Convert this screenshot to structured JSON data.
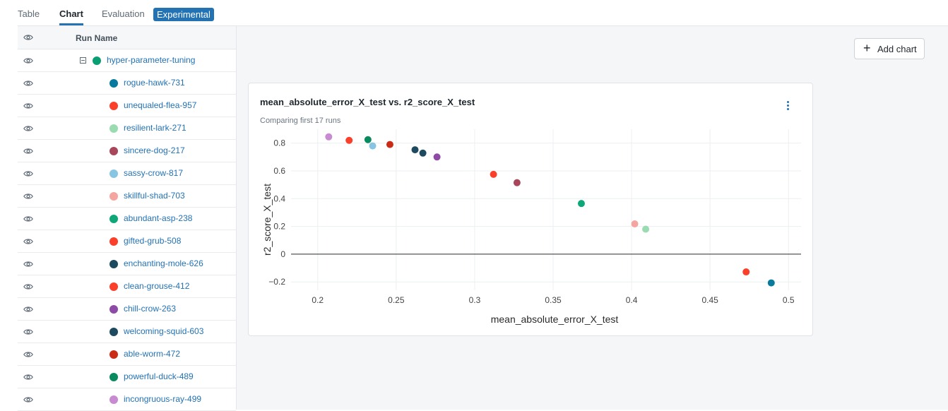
{
  "tabs": [
    {
      "label": "Table",
      "active": false
    },
    {
      "label": "Chart",
      "active": true
    },
    {
      "label": "Evaluation",
      "active": false
    }
  ],
  "badge": "Experimental",
  "sidebar": {
    "header": "Run Name",
    "group": {
      "name": "hyper-parameter-tuning",
      "color": "#0a9e73"
    },
    "runs": [
      {
        "name": "rogue-hawk-731",
        "color": "#077a9d"
      },
      {
        "name": "unequaled-flea-957",
        "color": "#fa3f2a"
      },
      {
        "name": "resilient-lark-271",
        "color": "#9bdbb2"
      },
      {
        "name": "sincere-dog-217",
        "color": "#a8475a"
      },
      {
        "name": "sassy-crow-817",
        "color": "#87c5e3"
      },
      {
        "name": "skillful-shad-703",
        "color": "#f4a59f"
      },
      {
        "name": "abundant-asp-238",
        "color": "#0ea878"
      },
      {
        "name": "gifted-grub-508",
        "color": "#fa3f2a"
      },
      {
        "name": "enchanting-mole-626",
        "color": "#1d4a5e"
      },
      {
        "name": "clean-grouse-412",
        "color": "#fa3f2a"
      },
      {
        "name": "chill-crow-263",
        "color": "#8e4ba6"
      },
      {
        "name": "welcoming-squid-603",
        "color": "#1d4a5e"
      },
      {
        "name": "able-worm-472",
        "color": "#c92b16"
      },
      {
        "name": "powerful-duck-489",
        "color": "#0a8a5f"
      },
      {
        "name": "incongruous-ray-499",
        "color": "#c88ad0"
      }
    ]
  },
  "main": {
    "add_chart_label": "Add chart"
  },
  "chart_data": {
    "type": "scatter",
    "title": "mean_absolute_error_X_test vs. r2_score_X_test",
    "subtitle": "Comparing first 17 runs",
    "xlabel": "mean_absolute_error_X_test",
    "ylabel": "r2_score_X_test",
    "xlim": [
      0.183,
      0.508
    ],
    "ylim": [
      -0.26,
      0.9
    ],
    "xticks": [
      0.2,
      0.25,
      0.3,
      0.35,
      0.4,
      0.45,
      0.5
    ],
    "xtick_labels": [
      "0.2",
      "0.25",
      "0.3",
      "0.35",
      "0.4",
      "0.45",
      "0.5"
    ],
    "yticks": [
      -0.2,
      0,
      0.2,
      0.4,
      0.6,
      0.8
    ],
    "ytick_labels": [
      "−0.2",
      "0",
      "0.2",
      "0.4",
      "0.6",
      "0.8"
    ],
    "grid": true,
    "points": [
      {
        "x": 0.207,
        "y": 0.845,
        "color": "#c88ad0"
      },
      {
        "x": 0.22,
        "y": 0.82,
        "color": "#fa3f2a"
      },
      {
        "x": 0.232,
        "y": 0.825,
        "color": "#0a8a5f"
      },
      {
        "x": 0.235,
        "y": 0.78,
        "color": "#87c5e3"
      },
      {
        "x": 0.246,
        "y": 0.79,
        "color": "#c92b16"
      },
      {
        "x": 0.262,
        "y": 0.752,
        "color": "#1d4a5e"
      },
      {
        "x": 0.267,
        "y": 0.728,
        "color": "#1d4a5e"
      },
      {
        "x": 0.276,
        "y": 0.7,
        "color": "#8e4ba6"
      },
      {
        "x": 0.312,
        "y": 0.575,
        "color": "#fa3f2a"
      },
      {
        "x": 0.327,
        "y": 0.515,
        "color": "#a8475a"
      },
      {
        "x": 0.368,
        "y": 0.365,
        "color": "#0ea878"
      },
      {
        "x": 0.402,
        "y": 0.218,
        "color": "#f4a59f"
      },
      {
        "x": 0.409,
        "y": 0.18,
        "color": "#9bdbb2"
      },
      {
        "x": 0.473,
        "y": -0.128,
        "color": "#fa3f2a"
      },
      {
        "x": 0.489,
        "y": -0.207,
        "color": "#077a9d"
      }
    ]
  }
}
